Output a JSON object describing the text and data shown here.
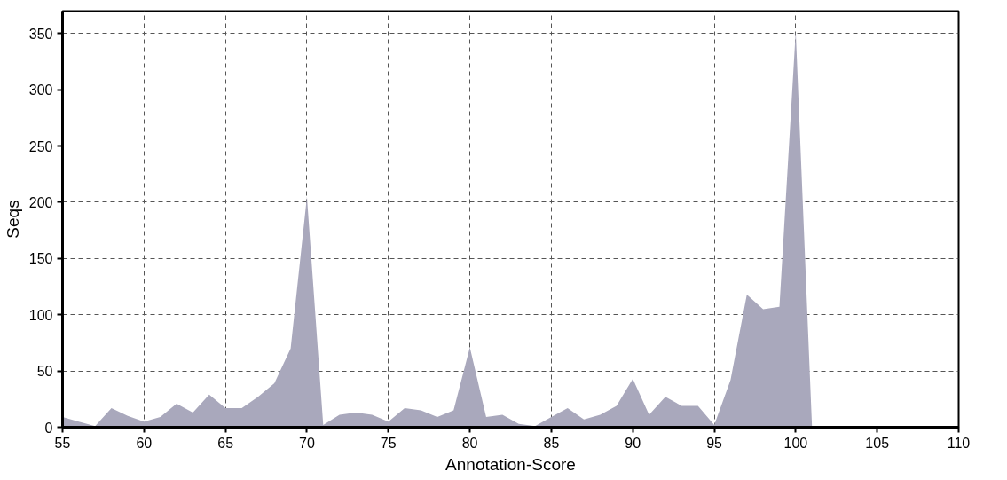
{
  "chart_data": {
    "type": "area",
    "xlabel": "Annotation-Score",
    "ylabel": "Seqs",
    "x": [
      55,
      56,
      57,
      58,
      59,
      60,
      61,
      62,
      63,
      64,
      65,
      66,
      67,
      68,
      69,
      70,
      71,
      72,
      73,
      74,
      75,
      76,
      77,
      78,
      79,
      80,
      81,
      82,
      83,
      84,
      85,
      86,
      87,
      88,
      89,
      90,
      91,
      92,
      93,
      94,
      95,
      96,
      97,
      98,
      99,
      100,
      101
    ],
    "series": [
      {
        "color": "#a9a8bc",
        "values": [
          9,
          5,
          1,
          17,
          10,
          5,
          9,
          21,
          13,
          29,
          17,
          17,
          27,
          39,
          70,
          205,
          2,
          11,
          13,
          11,
          5,
          17,
          15,
          9,
          15,
          71,
          9,
          11,
          3,
          1,
          9,
          17,
          7,
          11,
          19,
          43,
          11,
          27,
          19,
          19,
          2,
          42,
          118,
          105,
          107,
          352,
          0
        ]
      }
    ],
    "xlim": [
      55,
      110
    ],
    "xticks": [
      55,
      60,
      65,
      70,
      75,
      80,
      85,
      90,
      95,
      100,
      105,
      110
    ],
    "ylim": [
      0,
      370
    ],
    "yticks": [
      0,
      50,
      100,
      150,
      200,
      250,
      300,
      350
    ],
    "grid": true
  }
}
